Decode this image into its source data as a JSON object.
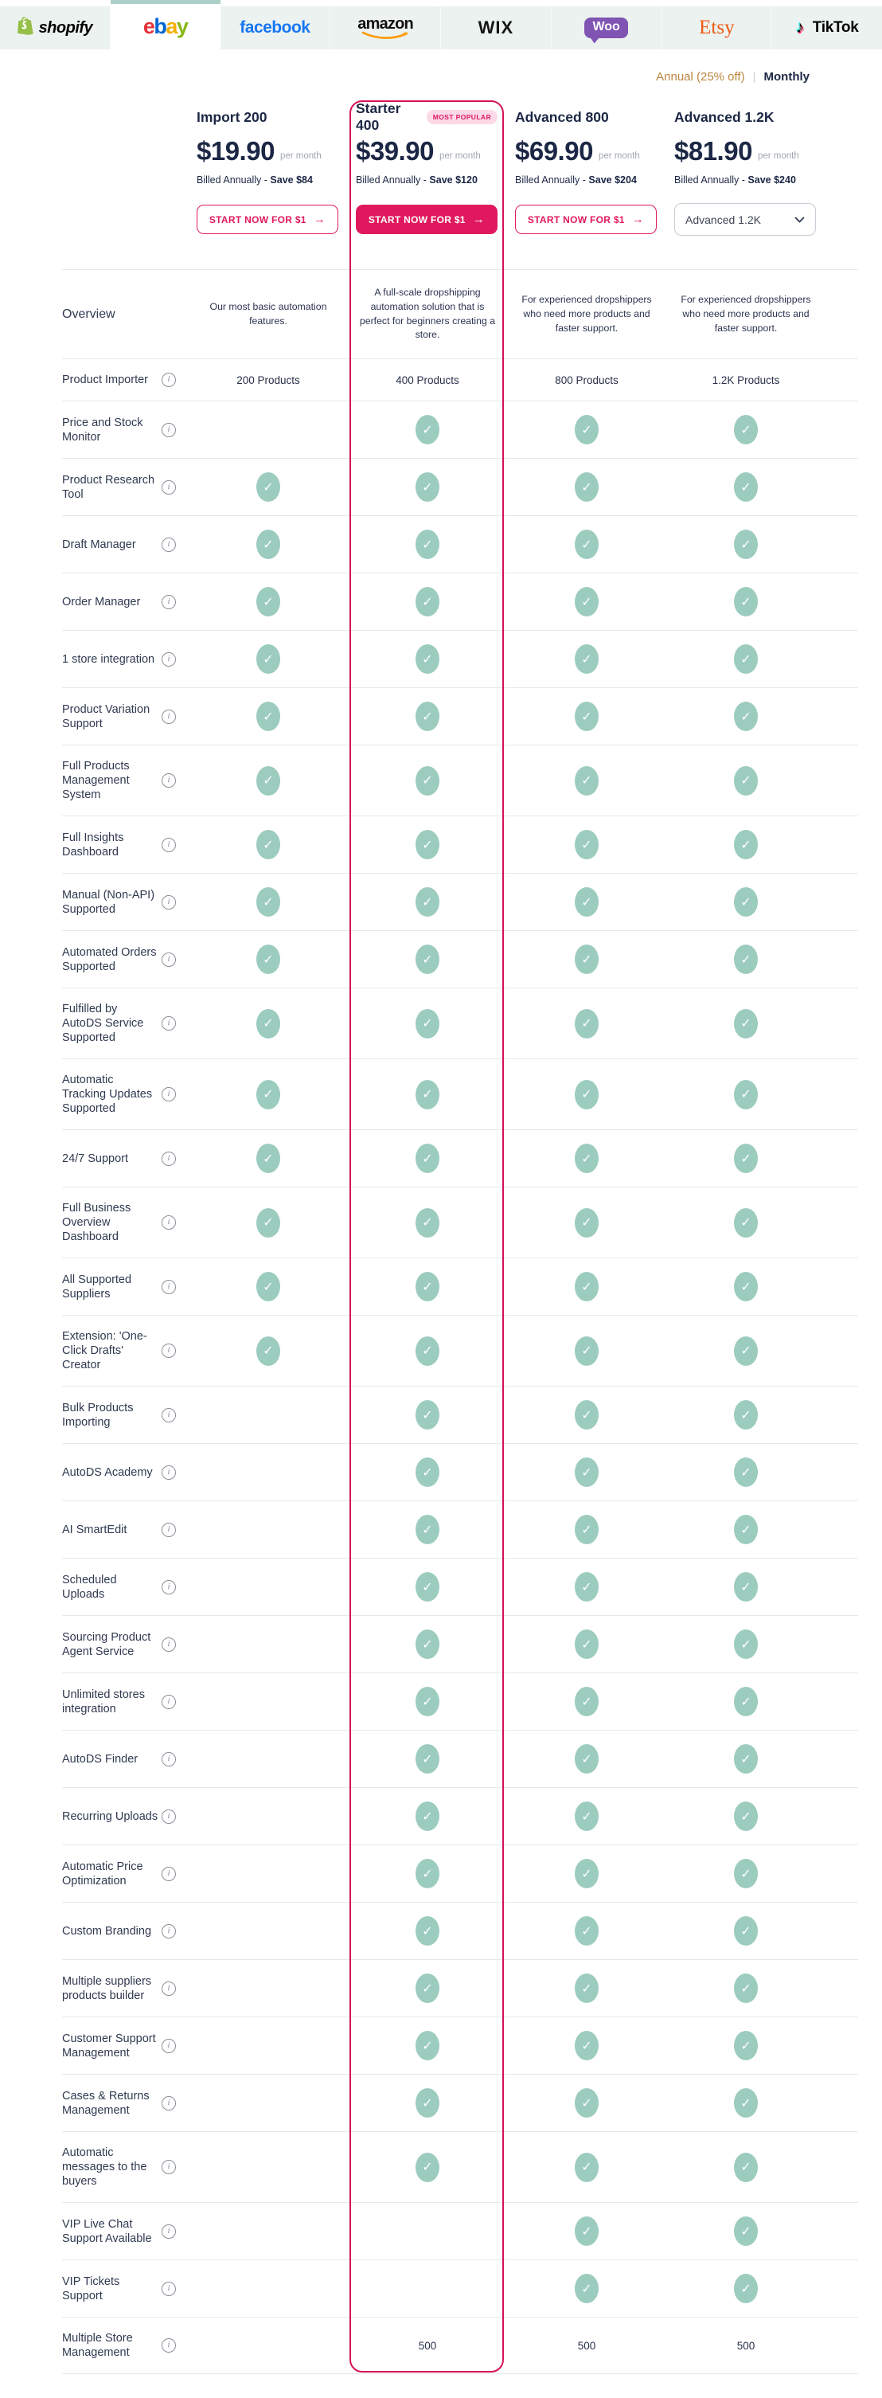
{
  "tabs": [
    {
      "label": "shopify",
      "active": false
    },
    {
      "label": "ebay",
      "letters": [
        "e",
        "b",
        "a",
        "y"
      ],
      "active": true
    },
    {
      "label": "facebook",
      "active": false
    },
    {
      "label": "amazon",
      "active": false
    },
    {
      "label": "WIX",
      "active": false
    },
    {
      "label": "Woo",
      "active": false
    },
    {
      "label": "Etsy",
      "active": false
    },
    {
      "label": "TikTok",
      "active": false
    }
  ],
  "billing": {
    "annual": "Annual (25% off)",
    "divider": "|",
    "monthly": "Monthly"
  },
  "plans": [
    {
      "name": "Import 200",
      "price": "$19.90",
      "per": "per month",
      "billed": "Billed Annually - ",
      "save": "Save $84",
      "cta": "START NOW FOR $1",
      "cta_arrow": "→",
      "cta_style": "outline"
    },
    {
      "name": "Starter 400",
      "badge": "MOST POPULAR",
      "price": "$39.90",
      "per": "per month",
      "billed": "Billed Annually - ",
      "save": "Save $120",
      "cta": "START NOW FOR $1",
      "cta_arrow": "→",
      "cta_style": "filled",
      "highlighted": true
    },
    {
      "name": "Advanced 800",
      "price": "$69.90",
      "per": "per month",
      "billed": "Billed Annually - ",
      "save": "Save $204",
      "cta": "START NOW FOR $1",
      "cta_arrow": "→",
      "cta_style": "outline"
    },
    {
      "name": "Advanced 1.2K",
      "price": "$81.90",
      "per": "per month",
      "billed": "Billed Annually - ",
      "save": "Save $240",
      "dropdown_value": "Advanced 1.2K"
    }
  ],
  "table": {
    "overview_label": "Overview",
    "overview": [
      "Our most basic automation features.",
      "A full-scale dropshipping automation solution that is perfect for beginners creating a store.",
      "For experienced dropshippers who need more products and faster support.",
      "For experienced dropshippers who need more products and faster support."
    ],
    "rows": [
      {
        "label": "Product Importer",
        "cells": [
          "200 Products",
          "400 Products",
          "800 Products",
          "1.2K Products"
        ]
      },
      {
        "label": "Price and Stock Monitor",
        "cells": [
          "",
          "check",
          "check",
          "check"
        ]
      },
      {
        "label": "Product Research Tool",
        "cells": [
          "check",
          "check",
          "check",
          "check"
        ]
      },
      {
        "label": "Draft Manager",
        "cells": [
          "check",
          "check",
          "check",
          "check"
        ]
      },
      {
        "label": "Order Manager",
        "cells": [
          "check",
          "check",
          "check",
          "check"
        ]
      },
      {
        "label": "1 store integration",
        "cells": [
          "check",
          "check",
          "check",
          "check"
        ]
      },
      {
        "label": "Product Variation Support",
        "cells": [
          "check",
          "check",
          "check",
          "check"
        ]
      },
      {
        "label": "Full Products Management System",
        "cells": [
          "check",
          "check",
          "check",
          "check"
        ]
      },
      {
        "label": "Full Insights Dashboard",
        "cells": [
          "check",
          "check",
          "check",
          "check"
        ]
      },
      {
        "label": "Manual (Non-API) Supported",
        "cells": [
          "check",
          "check",
          "check",
          "check"
        ]
      },
      {
        "label": "Automated Orders Supported",
        "cells": [
          "check",
          "check",
          "check",
          "check"
        ]
      },
      {
        "label": "Fulfilled by AutoDS Service Supported",
        "cells": [
          "check",
          "check",
          "check",
          "check"
        ]
      },
      {
        "label": "Automatic Tracking Updates Supported",
        "cells": [
          "check",
          "check",
          "check",
          "check"
        ]
      },
      {
        "label": "24/7 Support",
        "cells": [
          "check",
          "check",
          "check",
          "check"
        ]
      },
      {
        "label": "Full Business Overview Dashboard",
        "cells": [
          "check",
          "check",
          "check",
          "check"
        ]
      },
      {
        "label": "All Supported Suppliers",
        "cells": [
          "check",
          "check",
          "check",
          "check"
        ]
      },
      {
        "label": "Extension: 'One-Click Drafts' Creator",
        "cells": [
          "check",
          "check",
          "check",
          "check"
        ]
      },
      {
        "label": "Bulk Products Importing",
        "cells": [
          "",
          "check",
          "check",
          "check"
        ]
      },
      {
        "label": "AutoDS Academy",
        "cells": [
          "",
          "check",
          "check",
          "check"
        ]
      },
      {
        "label": "AI SmartEdit",
        "cells": [
          "",
          "check",
          "check",
          "check"
        ]
      },
      {
        "label": "Scheduled Uploads",
        "cells": [
          "",
          "check",
          "check",
          "check"
        ]
      },
      {
        "label": "Sourcing Product Agent Service",
        "cells": [
          "",
          "check",
          "check",
          "check"
        ]
      },
      {
        "label": "Unlimited stores integration",
        "cells": [
          "",
          "check",
          "check",
          "check"
        ]
      },
      {
        "label": "AutoDS Finder",
        "cells": [
          "",
          "check",
          "check",
          "check"
        ]
      },
      {
        "label": "Recurring Uploads",
        "cells": [
          "",
          "check",
          "check",
          "check"
        ]
      },
      {
        "label": "Automatic Price Optimization",
        "cells": [
          "",
          "check",
          "check",
          "check"
        ]
      },
      {
        "label": "Custom Branding",
        "cells": [
          "",
          "check",
          "check",
          "check"
        ]
      },
      {
        "label": "Multiple suppliers products builder",
        "cells": [
          "",
          "check",
          "check",
          "check"
        ]
      },
      {
        "label": "Customer Support Management",
        "cells": [
          "",
          "check",
          "check",
          "check"
        ]
      },
      {
        "label": "Cases & Returns Management",
        "cells": [
          "",
          "check",
          "check",
          "check"
        ]
      },
      {
        "label": "Automatic messages to the buyers",
        "cells": [
          "",
          "check",
          "check",
          "check"
        ]
      },
      {
        "label": "VIP Live Chat Support Available",
        "cells": [
          "",
          "",
          "check",
          "check"
        ]
      },
      {
        "label": "VIP Tickets Support",
        "cells": [
          "",
          "",
          "check",
          "check"
        ]
      },
      {
        "label": "Multiple Store Management",
        "cells": [
          "",
          "500",
          "500",
          "500"
        ]
      }
    ]
  },
  "colors": {
    "accent_pink": "#e0195e",
    "highlight_border": "#d5135a",
    "check_teal": "#9cccbe",
    "annual_gold": "#bb8640",
    "tab_bg": "#ecf2f0",
    "active_tab_top": "#abd0c8",
    "heading_navy": "#1c2745",
    "badge_bg": "#fbd9e6"
  }
}
